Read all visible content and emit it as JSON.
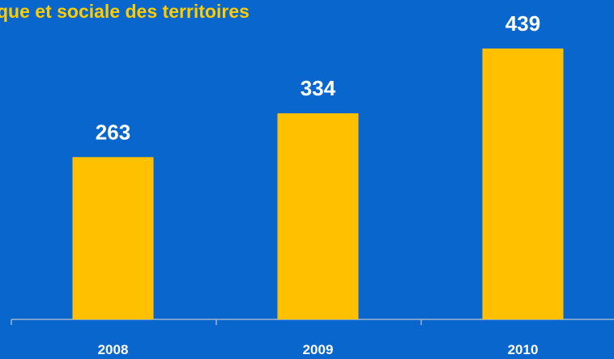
{
  "chart_data": {
    "type": "bar",
    "title": "que et sociale des territoires",
    "categories": [
      "2008",
      "2009",
      "2010"
    ],
    "values": [
      263,
      334,
      439
    ],
    "color": "#ffc000"
  }
}
